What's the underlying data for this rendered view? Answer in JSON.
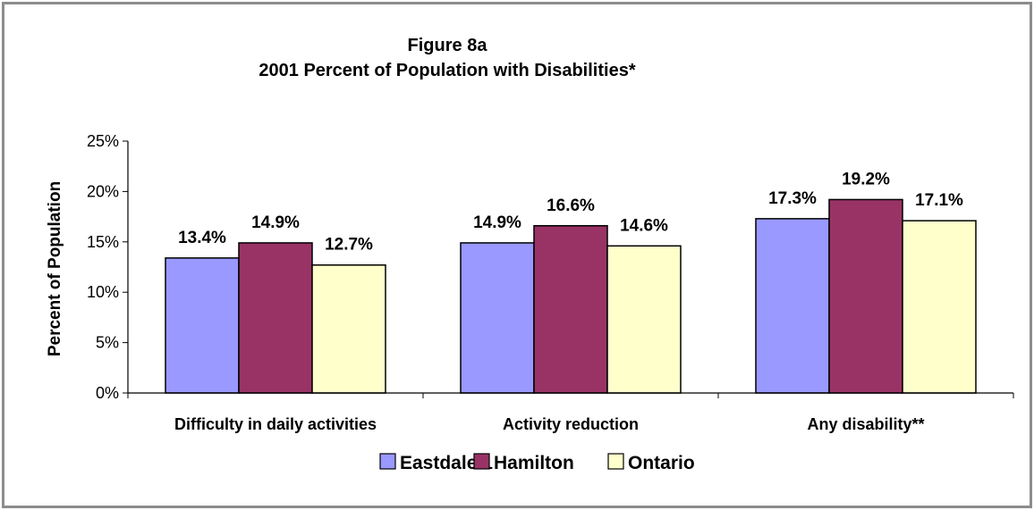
{
  "chart_data": {
    "type": "bar",
    "title": "Figure 8a",
    "subtitle": "2001 Percent of Population with Disabilities*",
    "xlabel": "",
    "ylabel": "Percent of Population",
    "ylim": [
      0,
      25
    ],
    "yticks": [
      0,
      5,
      10,
      15,
      20,
      25
    ],
    "ytick_labels": [
      "0%",
      "5%",
      "10%",
      "15%",
      "20%",
      "25%"
    ],
    "categories": [
      "Difficulty in daily activities",
      "Activity reduction",
      "Any disability**"
    ],
    "series": [
      {
        "name": "Eastdale 1",
        "color": "#9999ff",
        "values": [
          13.4,
          14.9,
          17.3
        ],
        "labels": [
          "13.4%",
          "14.9%",
          "17.3%"
        ]
      },
      {
        "name": "Hamilton",
        "color": "#993366",
        "values": [
          14.9,
          16.6,
          19.2
        ],
        "labels": [
          "14.9%",
          "16.6%",
          "19.2%"
        ]
      },
      {
        "name": "Ontario",
        "color": "#ffffcc",
        "values": [
          12.7,
          14.6,
          17.1
        ],
        "labels": [
          "12.7%",
          "14.6%",
          "17.1%"
        ]
      }
    ],
    "grid": false,
    "legend_position": "bottom"
  }
}
